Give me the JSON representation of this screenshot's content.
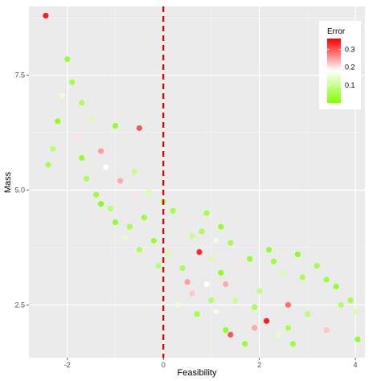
{
  "chart_data": {
    "type": "scatter",
    "title": "",
    "xlabel": "Feasibility",
    "ylabel": "Mass",
    "xlim": [
      -2.8,
      4.2
    ],
    "ylim": [
      1.35,
      9.0
    ],
    "x_ticks": [
      -2,
      0,
      2,
      4
    ],
    "x_tick_labels": [
      "-2",
      "0",
      "2",
      "4"
    ],
    "y_ticks": [
      2.5,
      5.0,
      7.5
    ],
    "y_tick_labels": [
      "2.5",
      "5.0",
      "7.5"
    ],
    "grid": true,
    "panel_background": "#ebebeb",
    "reference_line": {
      "x": 0,
      "color": "#e00000",
      "style": "dashed"
    },
    "color_scale": {
      "title": "Error",
      "low_color": "#80ff00",
      "mid_color": "#ffffff",
      "high_color": "#ff0000",
      "range": [
        0.0,
        0.36
      ],
      "breaks": [
        0.1,
        0.2,
        0.3
      ],
      "break_labels": [
        "0.1",
        "0.2",
        "0.3"
      ],
      "legend_position": "top-right"
    },
    "points": [
      {
        "x": -2.45,
        "y": 8.8,
        "error": 0.34
      },
      {
        "x": -0.5,
        "y": 6.35,
        "error": 0.3
      },
      {
        "x": 0.75,
        "y": 3.65,
        "error": 0.33
      },
      {
        "x": 1.4,
        "y": 1.85,
        "error": 0.3
      },
      {
        "x": 2.15,
        "y": 2.15,
        "error": 0.34
      },
      {
        "x": 1.9,
        "y": 2.0,
        "error": 0.24
      },
      {
        "x": 2.6,
        "y": 2.5,
        "error": 0.28
      },
      {
        "x": 3.4,
        "y": 1.95,
        "error": 0.22
      },
      {
        "x": 1.1,
        "y": 2.35,
        "error": 0.16
      },
      {
        "x": 0.6,
        "y": 2.75,
        "error": 0.22
      },
      {
        "x": -2.0,
        "y": 7.85,
        "error": 0.04
      },
      {
        "x": -1.9,
        "y": 7.35,
        "error": 0.05
      },
      {
        "x": -2.1,
        "y": 7.05,
        "error": 0.15
      },
      {
        "x": -1.7,
        "y": 6.9,
        "error": 0.06
      },
      {
        "x": -2.2,
        "y": 6.5,
        "error": 0.02
      },
      {
        "x": -1.5,
        "y": 6.55,
        "error": 0.12
      },
      {
        "x": -1.8,
        "y": 6.1,
        "error": 0.2
      },
      {
        "x": -2.3,
        "y": 5.9,
        "error": 0.08
      },
      {
        "x": -1.3,
        "y": 5.85,
        "error": 0.25
      },
      {
        "x": -1.0,
        "y": 6.4,
        "error": 0.03
      },
      {
        "x": -1.2,
        "y": 5.5,
        "error": 0.18
      },
      {
        "x": -0.9,
        "y": 5.2,
        "error": 0.24
      },
      {
        "x": -0.6,
        "y": 5.4,
        "error": 0.1
      },
      {
        "x": -2.4,
        "y": 5.55,
        "error": 0.05
      },
      {
        "x": -1.6,
        "y": 5.25,
        "error": 0.06
      },
      {
        "x": -0.3,
        "y": 4.95,
        "error": 0.12
      },
      {
        "x": 0.0,
        "y": 4.75,
        "error": 0.07
      },
      {
        "x": 0.2,
        "y": 4.55,
        "error": 0.05
      },
      {
        "x": 0.45,
        "y": 4.35,
        "error": 0.2
      },
      {
        "x": -0.4,
        "y": 4.4,
        "error": 0.04
      },
      {
        "x": 0.8,
        "y": 4.1,
        "error": 0.06
      },
      {
        "x": 1.1,
        "y": 3.9,
        "error": 0.16
      },
      {
        "x": 1.4,
        "y": 3.85,
        "error": 0.05
      },
      {
        "x": 1.8,
        "y": 3.5,
        "error": 0.03
      },
      {
        "x": 2.3,
        "y": 3.45,
        "error": 0.04
      },
      {
        "x": 2.5,
        "y": 3.2,
        "error": 0.12
      },
      {
        "x": 2.9,
        "y": 3.1,
        "error": 0.06
      },
      {
        "x": 3.4,
        "y": 3.05,
        "error": 0.04
      },
      {
        "x": 3.6,
        "y": 2.9,
        "error": 0.03
      },
      {
        "x": 3.7,
        "y": 2.5,
        "error": 0.07
      },
      {
        "x": 3.9,
        "y": 2.6,
        "error": 0.05
      },
      {
        "x": 4.0,
        "y": 2.35,
        "error": 0.12
      },
      {
        "x": 4.05,
        "y": 1.75,
        "error": 0.03
      },
      {
        "x": 3.0,
        "y": 2.3,
        "error": 0.08
      },
      {
        "x": 2.7,
        "y": 1.65,
        "error": 0.04
      },
      {
        "x": 2.4,
        "y": 1.85,
        "error": 0.14
      },
      {
        "x": 1.7,
        "y": 1.65,
        "error": 0.03
      },
      {
        "x": 1.5,
        "y": 2.6,
        "error": 0.1
      },
      {
        "x": 1.2,
        "y": 3.2,
        "error": 0.02
      },
      {
        "x": 0.9,
        "y": 2.95,
        "error": 0.18
      },
      {
        "x": 0.4,
        "y": 3.3,
        "error": 0.06
      },
      {
        "x": 0.1,
        "y": 3.6,
        "error": 0.12
      },
      {
        "x": -0.2,
        "y": 3.9,
        "error": 0.03
      },
      {
        "x": -0.7,
        "y": 4.2,
        "error": 0.05
      },
      {
        "x": -1.1,
        "y": 4.6,
        "error": 0.08
      },
      {
        "x": -1.4,
        "y": 4.9,
        "error": 0.04
      },
      {
        "x": 0.3,
        "y": 2.5,
        "error": 0.15
      },
      {
        "x": 0.7,
        "y": 2.3,
        "error": 0.05
      },
      {
        "x": 1.3,
        "y": 2.95,
        "error": 0.24
      },
      {
        "x": 2.0,
        "y": 2.8,
        "error": 0.09
      },
      {
        "x": 2.2,
        "y": 3.7,
        "error": 0.03
      },
      {
        "x": 1.6,
        "y": 3.45,
        "error": 0.2
      },
      {
        "x": 1.0,
        "y": 3.5,
        "error": 0.12
      },
      {
        "x": 0.5,
        "y": 3.0,
        "error": 0.25
      },
      {
        "x": -0.1,
        "y": 3.35,
        "error": 0.08
      },
      {
        "x": -0.5,
        "y": 3.7,
        "error": 0.06
      },
      {
        "x": -0.8,
        "y": 3.95,
        "error": 0.14
      },
      {
        "x": -1.0,
        "y": 4.3,
        "error": 0.03
      },
      {
        "x": -1.3,
        "y": 4.7,
        "error": 0.02
      },
      {
        "x": 0.9,
        "y": 4.5,
        "error": 0.05
      },
      {
        "x": 1.2,
        "y": 4.2,
        "error": 0.03
      },
      {
        "x": 0.6,
        "y": 4.0,
        "error": 0.1
      },
      {
        "x": 2.8,
        "y": 3.6,
        "error": 0.02
      },
      {
        "x": 3.2,
        "y": 3.35,
        "error": 0.05
      },
      {
        "x": 1.9,
        "y": 2.45,
        "error": 0.05
      },
      {
        "x": 2.6,
        "y": 2.0,
        "error": 0.05
      },
      {
        "x": 1.3,
        "y": 1.95,
        "error": 0.03
      },
      {
        "x": 1.0,
        "y": 2.6,
        "error": 0.07
      },
      {
        "x": -0.6,
        "y": 4.85,
        "error": 0.2
      },
      {
        "x": -1.7,
        "y": 5.7,
        "error": 0.03
      }
    ]
  }
}
